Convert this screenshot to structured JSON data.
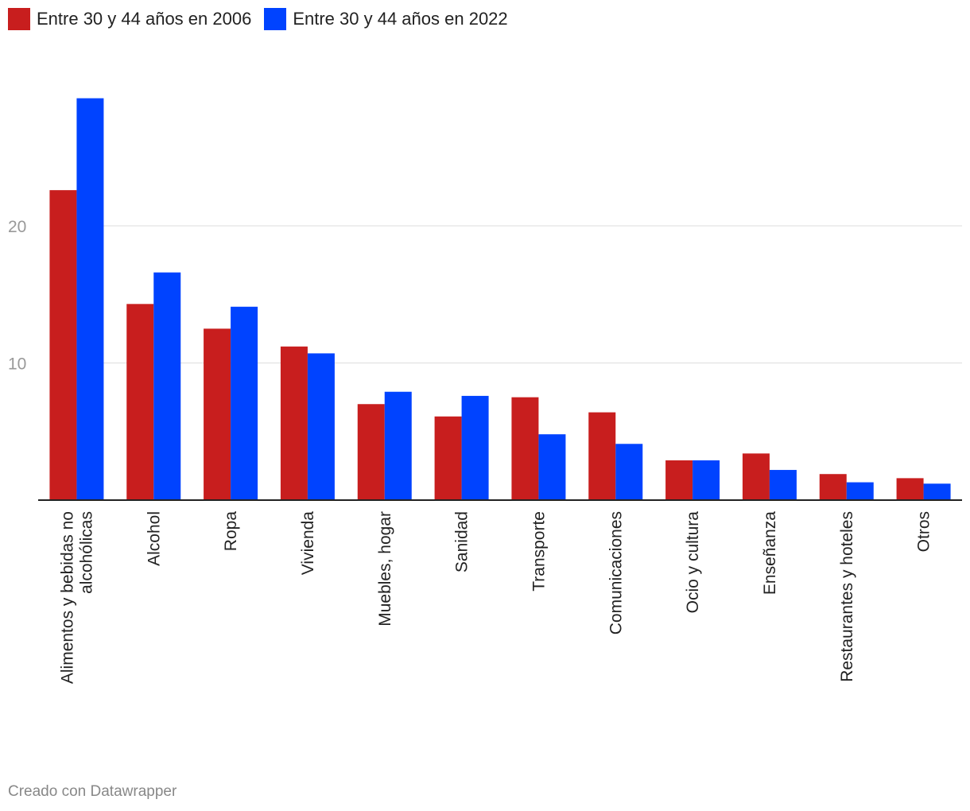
{
  "legend": {
    "series_2006": "Entre 30 y 44 años en 2006",
    "series_2022": "Entre 30 y 44 años en 2022"
  },
  "colors": {
    "series_2006": "#c81e1e",
    "series_2022": "#0043ff"
  },
  "footer": "Creado con Datawrapper",
  "chart_data": {
    "type": "bar",
    "categories": [
      [
        "Alimentos y bebidas no",
        "alcohólicas"
      ],
      [
        "Alcohol"
      ],
      [
        "Ropa"
      ],
      [
        "Vivienda"
      ],
      [
        "Muebles, hogar"
      ],
      [
        "Sanidad"
      ],
      [
        "Transporte"
      ],
      [
        "Comunicaciones"
      ],
      [
        "Ocio y cultura"
      ],
      [
        "Enseñanza"
      ],
      [
        "Restaurantes y hoteles"
      ],
      [
        "Otros"
      ]
    ],
    "series": [
      {
        "name": "Entre 30 y 44 años en 2006",
        "values": [
          22.6,
          14.3,
          12.5,
          11.2,
          7.0,
          6.1,
          7.5,
          6.4,
          2.9,
          3.4,
          1.9,
          1.6
        ]
      },
      {
        "name": "Entre 30 y 44 años en 2022",
        "values": [
          29.3,
          16.6,
          14.1,
          10.7,
          7.9,
          7.6,
          4.8,
          4.1,
          2.9,
          2.2,
          1.3,
          1.2
        ]
      }
    ],
    "yticks": [
      10,
      20
    ],
    "ylim": [
      0,
      30
    ],
    "grid": true,
    "legend_position": "top-left"
  }
}
